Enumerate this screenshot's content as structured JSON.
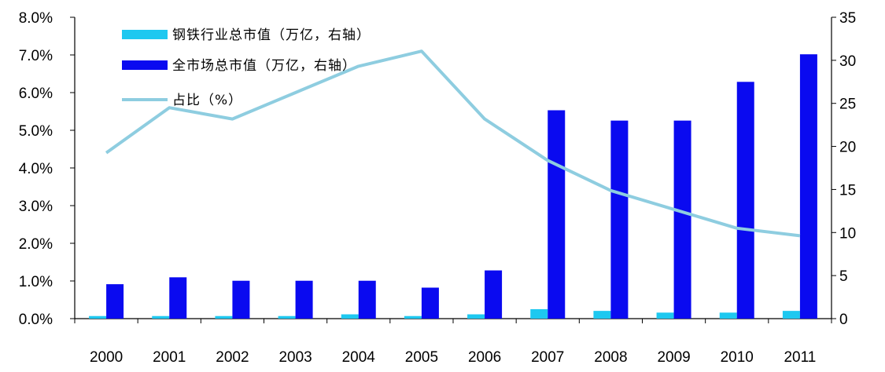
{
  "chart_data": {
    "type": "bar+line",
    "categories": [
      "2000",
      "2001",
      "2002",
      "2003",
      "2004",
      "2005",
      "2006",
      "2007",
      "2008",
      "2009",
      "2010",
      "2011"
    ],
    "series": [
      {
        "name": "钢铁行业总市值（万亿，右轴）",
        "kind": "bar",
        "axis": "right",
        "color": "#1ec8f0",
        "values": [
          0.3,
          0.3,
          0.3,
          0.3,
          0.5,
          0.3,
          0.5,
          1.1,
          0.9,
          0.7,
          0.7,
          0.9
        ]
      },
      {
        "name": "全市场总市值（万亿，右轴）",
        "kind": "bar",
        "axis": "right",
        "color": "#0a0af0",
        "values": [
          4.0,
          4.8,
          4.4,
          4.4,
          4.4,
          3.6,
          5.6,
          24.2,
          23.0,
          23.0,
          27.5,
          30.7
        ]
      },
      {
        "name": "占比（%）",
        "kind": "line",
        "axis": "left",
        "color": "#8ecde0",
        "values": [
          4.4,
          5.6,
          5.3,
          6.0,
          6.7,
          7.1,
          5.3,
          4.2,
          3.4,
          2.9,
          2.4,
          2.2
        ]
      }
    ],
    "left_axis": {
      "min": 0,
      "max": 8,
      "ticks": [
        0,
        1,
        2,
        3,
        4,
        5,
        6,
        7,
        8
      ],
      "tick_labels": [
        "0.0%",
        "1.0%",
        "2.0%",
        "3.0%",
        "4.0%",
        "5.0%",
        "6.0%",
        "7.0%",
        "8.0%"
      ]
    },
    "right_axis": {
      "min": 0,
      "max": 35,
      "ticks": [
        0,
        5,
        10,
        15,
        20,
        25,
        30,
        35
      ],
      "tick_labels": [
        "0",
        "5",
        "10",
        "15",
        "20",
        "25",
        "30",
        "35"
      ]
    },
    "legend_position": "top-left",
    "grid": false,
    "title": ""
  }
}
